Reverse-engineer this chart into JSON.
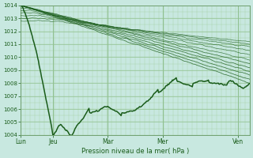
{
  "xlabel": "Pression niveau de la mer( hPa )",
  "ylim": [
    1004,
    1014
  ],
  "yticks": [
    1004,
    1005,
    1006,
    1007,
    1008,
    1009,
    1010,
    1011,
    1012,
    1013,
    1014
  ],
  "xtick_labels": [
    "Lun",
    "Jeu",
    "Mar",
    "Mer",
    "Ven"
  ],
  "xtick_positions": [
    0.0,
    0.14,
    0.38,
    0.62,
    0.95
  ],
  "bg_color": "#c8e8e0",
  "grid_color_major": "#90c090",
  "grid_color_minor": "#a8d4a8",
  "line_color": "#1a5c1a",
  "spine_color": "#70a070"
}
